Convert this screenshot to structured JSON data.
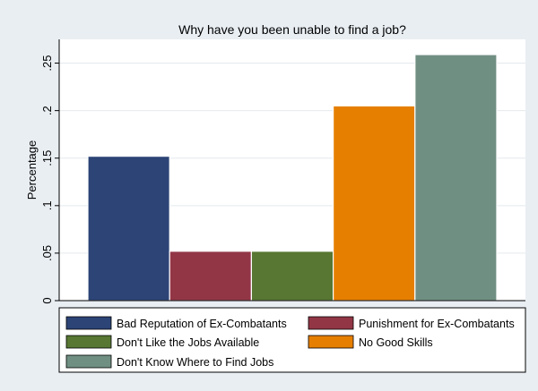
{
  "chart_data": {
    "type": "bar",
    "title": "Why have you been unable to find a job?",
    "xlabel": "",
    "ylabel": "Percentage",
    "ylim": [
      0,
      0.275
    ],
    "yticks": [
      {
        "value": 0,
        "label": "0"
      },
      {
        "value": 0.05,
        "label": ".05"
      },
      {
        "value": 0.1,
        "label": ".1"
      },
      {
        "value": 0.15,
        "label": ".15"
      },
      {
        "value": 0.2,
        "label": ".2"
      },
      {
        "value": 0.25,
        "label": ".25"
      }
    ],
    "grid": true,
    "legend_position": "bottom",
    "series": [
      {
        "name": "Bad Reputation of Ex-Combatants",
        "value": 0.152,
        "color": "#2c4476"
      },
      {
        "name": "Punishment for Ex-Combatants",
        "value": 0.052,
        "color": "#923646"
      },
      {
        "name": "Don't Like the Jobs Available",
        "value": 0.052,
        "color": "#577732"
      },
      {
        "name": "No Good Skills",
        "value": 0.205,
        "color": "#e67f00"
      },
      {
        "name": "Don't Know Where to Find Jobs",
        "value": 0.259,
        "color": "#708f83"
      }
    ]
  }
}
